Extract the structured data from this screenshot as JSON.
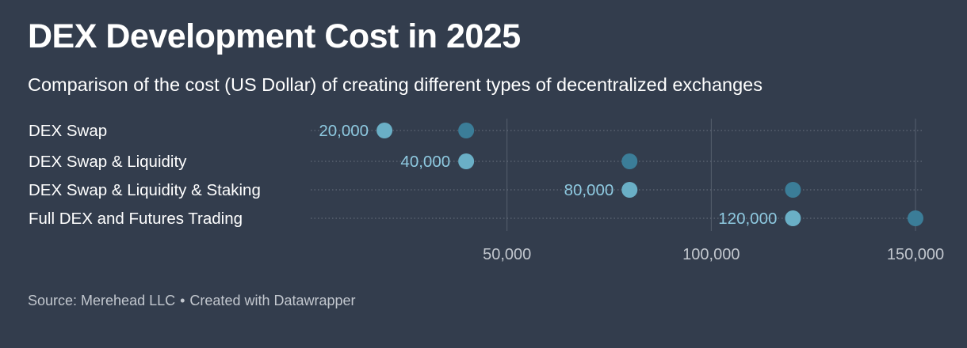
{
  "header": {
    "title": "DEX Development Cost in 2025",
    "subtitle": "Comparison of the cost (US Dollar) of creating different types of decentralized exchanges"
  },
  "footer": {
    "source": "Source: Merehead LLC",
    "separator": "•",
    "credit": "Created with Datawrapper"
  },
  "colors": {
    "background": "#333d4d",
    "start_dot": "#6aafc6",
    "end_dot": "#3b7d98",
    "value_label": "#8ec9e0",
    "tick_label": "#c2c7ce"
  },
  "chart_data": {
    "type": "range-dot",
    "title": "DEX Development Cost in 2025",
    "subtitle": "Comparison of the cost (US Dollar) of creating different types of decentralized exchanges",
    "categories": [
      "DEX Swap",
      "DEX Swap & Liquidity",
      "DEX Swap & Liquidity & Staking",
      "Full DEX and Futures Trading"
    ],
    "series": [
      {
        "name": "",
        "values": [
          20000,
          40000,
          80000,
          120000
        ]
      },
      {
        "name": "",
        "values": [
          40000,
          80000,
          120000,
          150000
        ]
      }
    ],
    "value_labels": [
      "20,000",
      "40,000",
      "80,000",
      "120,000"
    ],
    "xlim": [
      0,
      150000
    ],
    "xticks": [
      50000,
      100000,
      150000
    ],
    "xtick_labels": [
      "50,000",
      "100,000",
      "150,000"
    ],
    "grid": "vertical",
    "legend": "none"
  }
}
